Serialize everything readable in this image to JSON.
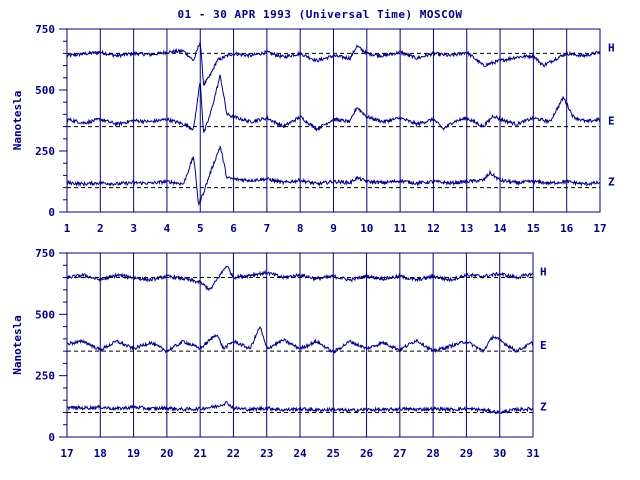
{
  "title": "01 - 30 APR 1993 (Universal Time) MOSCOW",
  "colors": {
    "ink": "#000080",
    "background": "#ffffff"
  },
  "chart_data": [
    {
      "type": "line",
      "panel": "top",
      "ylabel": "Nanotesla",
      "xlim": [
        1,
        17
      ],
      "ylim": [
        0,
        750
      ],
      "x_ticks": [
        "1",
        "2",
        "3",
        "4",
        "5",
        "6",
        "7",
        "8",
        "9",
        "10",
        "11",
        "12",
        "13",
        "14",
        "15",
        "16",
        "17"
      ],
      "y_ticks": [
        "0",
        "250",
        "500",
        "750"
      ],
      "grid": "vertical lines at each day",
      "series": [
        {
          "name": "H",
          "baseline": 650,
          "values": [
            [
              1.0,
              640
            ],
            [
              1.5,
              648
            ],
            [
              2.0,
              655
            ],
            [
              2.5,
              640
            ],
            [
              3.0,
              650
            ],
            [
              3.5,
              645
            ],
            [
              4.0,
              655
            ],
            [
              4.5,
              660
            ],
            [
              4.8,
              620
            ],
            [
              5.0,
              700
            ],
            [
              5.1,
              520
            ],
            [
              5.3,
              560
            ],
            [
              5.5,
              620
            ],
            [
              5.8,
              640
            ],
            [
              6.0,
              650
            ],
            [
              6.5,
              640
            ],
            [
              7.0,
              655
            ],
            [
              7.5,
              635
            ],
            [
              8.0,
              650
            ],
            [
              8.5,
              620
            ],
            [
              9.0,
              640
            ],
            [
              9.5,
              630
            ],
            [
              9.7,
              680
            ],
            [
              10.0,
              650
            ],
            [
              10.5,
              640
            ],
            [
              11.0,
              655
            ],
            [
              11.5,
              630
            ],
            [
              12.0,
              650
            ],
            [
              12.5,
              640
            ],
            [
              13.0,
              655
            ],
            [
              13.5,
              600
            ],
            [
              14.0,
              620
            ],
            [
              14.5,
              635
            ],
            [
              15.0,
              640
            ],
            [
              15.3,
              600
            ],
            [
              15.7,
              630
            ],
            [
              16.0,
              650
            ],
            [
              16.5,
              640
            ],
            [
              17.0,
              655
            ]
          ]
        },
        {
          "name": "E",
          "baseline": 350,
          "values": [
            [
              1.0,
              380
            ],
            [
              1.5,
              365
            ],
            [
              2.0,
              380
            ],
            [
              2.5,
              360
            ],
            [
              3.0,
              375
            ],
            [
              3.5,
              370
            ],
            [
              4.0,
              380
            ],
            [
              4.5,
              360
            ],
            [
              4.8,
              340
            ],
            [
              5.0,
              540
            ],
            [
              5.1,
              320
            ],
            [
              5.3,
              400
            ],
            [
              5.6,
              560
            ],
            [
              5.8,
              400
            ],
            [
              6.0,
              390
            ],
            [
              6.5,
              370
            ],
            [
              7.0,
              385
            ],
            [
              7.5,
              350
            ],
            [
              8.0,
              390
            ],
            [
              8.5,
              340
            ],
            [
              9.0,
              380
            ],
            [
              9.5,
              370
            ],
            [
              9.7,
              430
            ],
            [
              10.0,
              390
            ],
            [
              10.5,
              370
            ],
            [
              11.0,
              385
            ],
            [
              11.5,
              360
            ],
            [
              12.0,
              380
            ],
            [
              12.3,
              340
            ],
            [
              12.6,
              370
            ],
            [
              13.0,
              385
            ],
            [
              13.5,
              350
            ],
            [
              13.8,
              395
            ],
            [
              14.0,
              380
            ],
            [
              14.5,
              360
            ],
            [
              15.0,
              385
            ],
            [
              15.5,
              370
            ],
            [
              15.9,
              470
            ],
            [
              16.2,
              390
            ],
            [
              16.6,
              370
            ],
            [
              17.0,
              380
            ]
          ]
        },
        {
          "name": "Z",
          "baseline": 100,
          "values": [
            [
              1.0,
              120
            ],
            [
              1.5,
              115
            ],
            [
              2.0,
              120
            ],
            [
              2.5,
              115
            ],
            [
              3.0,
              120
            ],
            [
              3.5,
              118
            ],
            [
              4.0,
              125
            ],
            [
              4.5,
              115
            ],
            [
              4.8,
              230
            ],
            [
              4.95,
              30
            ],
            [
              5.1,
              80
            ],
            [
              5.3,
              160
            ],
            [
              5.6,
              270
            ],
            [
              5.8,
              140
            ],
            [
              6.0,
              135
            ],
            [
              6.5,
              130
            ],
            [
              7.0,
              135
            ],
            [
              7.5,
              120
            ],
            [
              8.0,
              130
            ],
            [
              8.5,
              115
            ],
            [
              9.0,
              125
            ],
            [
              9.5,
              120
            ],
            [
              9.7,
              140
            ],
            [
              10.0,
              125
            ],
            [
              10.5,
              120
            ],
            [
              11.0,
              128
            ],
            [
              11.5,
              118
            ],
            [
              12.0,
              125
            ],
            [
              12.5,
              118
            ],
            [
              13.0,
              125
            ],
            [
              13.5,
              130
            ],
            [
              13.7,
              160
            ],
            [
              14.0,
              130
            ],
            [
              14.5,
              120
            ],
            [
              15.0,
              125
            ],
            [
              15.5,
              118
            ],
            [
              16.0,
              125
            ],
            [
              16.5,
              115
            ],
            [
              17.0,
              120
            ]
          ]
        }
      ]
    },
    {
      "type": "line",
      "panel": "bottom",
      "ylabel": "Nanotesla",
      "xlim": [
        17,
        31
      ],
      "ylim": [
        0,
        750
      ],
      "x_ticks": [
        "17",
        "18",
        "19",
        "20",
        "21",
        "22",
        "23",
        "24",
        "25",
        "26",
        "27",
        "28",
        "29",
        "30",
        "31"
      ],
      "y_ticks": [
        "0",
        "250",
        "500",
        "750"
      ],
      "grid": "vertical lines at each day",
      "series": [
        {
          "name": "H",
          "baseline": 650,
          "values": [
            [
              17.0,
              650
            ],
            [
              17.5,
              660
            ],
            [
              18.0,
              640
            ],
            [
              18.5,
              660
            ],
            [
              19.0,
              650
            ],
            [
              19.5,
              640
            ],
            [
              20.0,
              655
            ],
            [
              20.5,
              645
            ],
            [
              21.0,
              630
            ],
            [
              21.3,
              600
            ],
            [
              21.6,
              660
            ],
            [
              21.8,
              700
            ],
            [
              22.0,
              650
            ],
            [
              22.5,
              660
            ],
            [
              23.0,
              670
            ],
            [
              23.5,
              650
            ],
            [
              24.0,
              660
            ],
            [
              24.5,
              645
            ],
            [
              25.0,
              655
            ],
            [
              25.5,
              640
            ],
            [
              26.0,
              655
            ],
            [
              26.5,
              645
            ],
            [
              27.0,
              655
            ],
            [
              27.5,
              640
            ],
            [
              28.0,
              655
            ],
            [
              28.5,
              640
            ],
            [
              29.0,
              660
            ],
            [
              29.5,
              655
            ],
            [
              30.0,
              665
            ],
            [
              30.5,
              650
            ],
            [
              31.0,
              665
            ]
          ]
        },
        {
          "name": "E",
          "baseline": 350,
          "values": [
            [
              17.0,
              380
            ],
            [
              17.5,
              390
            ],
            [
              18.0,
              355
            ],
            [
              18.5,
              390
            ],
            [
              19.0,
              360
            ],
            [
              19.5,
              385
            ],
            [
              20.0,
              350
            ],
            [
              20.5,
              390
            ],
            [
              21.0,
              360
            ],
            [
              21.5,
              420
            ],
            [
              21.7,
              360
            ],
            [
              22.0,
              390
            ],
            [
              22.5,
              360
            ],
            [
              22.8,
              450
            ],
            [
              23.0,
              360
            ],
            [
              23.5,
              395
            ],
            [
              24.0,
              360
            ],
            [
              24.5,
              390
            ],
            [
              25.0,
              345
            ],
            [
              25.5,
              390
            ],
            [
              26.0,
              360
            ],
            [
              26.5,
              385
            ],
            [
              27.0,
              355
            ],
            [
              27.5,
              395
            ],
            [
              28.0,
              350
            ],
            [
              28.5,
              370
            ],
            [
              29.0,
              390
            ],
            [
              29.5,
              350
            ],
            [
              29.8,
              410
            ],
            [
              30.0,
              395
            ],
            [
              30.5,
              350
            ],
            [
              31.0,
              385
            ]
          ]
        },
        {
          "name": "Z",
          "baseline": 100,
          "values": [
            [
              17.0,
              120
            ],
            [
              17.5,
              118
            ],
            [
              18.0,
              122
            ],
            [
              18.5,
              115
            ],
            [
              19.0,
              122
            ],
            [
              19.5,
              115
            ],
            [
              20.0,
              118
            ],
            [
              20.5,
              112
            ],
            [
              21.0,
              115
            ],
            [
              21.5,
              125
            ],
            [
              21.8,
              140
            ],
            [
              22.0,
              118
            ],
            [
              22.5,
              112
            ],
            [
              23.0,
              118
            ],
            [
              23.5,
              110
            ],
            [
              24.0,
              115
            ],
            [
              24.5,
              110
            ],
            [
              25.0,
              112
            ],
            [
              25.5,
              108
            ],
            [
              26.0,
              112
            ],
            [
              26.5,
              110
            ],
            [
              27.0,
              115
            ],
            [
              27.5,
              112
            ],
            [
              28.0,
              115
            ],
            [
              28.5,
              112
            ],
            [
              29.0,
              115
            ],
            [
              29.5,
              110
            ],
            [
              30.0,
              100
            ],
            [
              30.5,
              112
            ],
            [
              31.0,
              115
            ]
          ]
        }
      ]
    }
  ]
}
